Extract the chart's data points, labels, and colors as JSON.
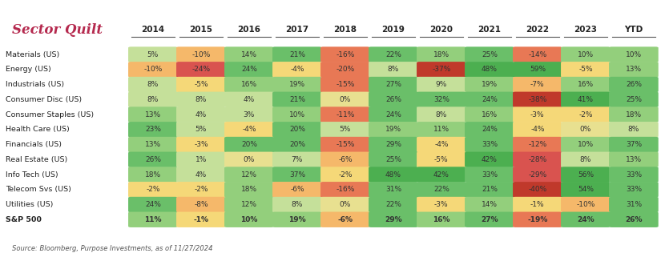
{
  "title": "Sector Quilt",
  "title_color": "#b5294e",
  "source": "Source: Bloomberg, Purpose Investments, as of 11/27/2024",
  "columns": [
    "2014",
    "2015",
    "2016",
    "2017",
    "2018",
    "2019",
    "2020",
    "2021",
    "2022",
    "2023",
    "YTD"
  ],
  "rows": [
    "Materials (US)",
    "Energy (US)",
    "Industrials (US)",
    "Consumer Disc (US)",
    "Consumer Staples (US)",
    "Health Care (US)",
    "Financials (US)",
    "Real Estate (US)",
    "Info Tech (US)",
    "Telecom Svs (US)",
    "Utilities (US)",
    "S&P 500"
  ],
  "values": [
    [
      5,
      -10,
      14,
      21,
      -16,
      22,
      18,
      25,
      -14,
      10,
      10
    ],
    [
      -10,
      -24,
      24,
      -4,
      -20,
      8,
      -37,
      48,
      59,
      -5,
      13
    ],
    [
      8,
      -5,
      16,
      19,
      -15,
      27,
      9,
      19,
      -7,
      16,
      26
    ],
    [
      8,
      8,
      4,
      21,
      0,
      26,
      32,
      24,
      -38,
      41,
      25
    ],
    [
      13,
      4,
      3,
      10,
      -11,
      24,
      8,
      16,
      -3,
      -2,
      18
    ],
    [
      23,
      5,
      -4,
      20,
      5,
      19,
      11,
      24,
      -4,
      0,
      8
    ],
    [
      13,
      -3,
      20,
      20,
      -15,
      29,
      -4,
      33,
      -12,
      10,
      37
    ],
    [
      26,
      1,
      0,
      7,
      -6,
      25,
      -5,
      42,
      -28,
      8,
      13
    ],
    [
      18,
      4,
      12,
      37,
      -2,
      48,
      42,
      33,
      -29,
      56,
      33
    ],
    [
      -2,
      -2,
      18,
      -6,
      -16,
      31,
      22,
      21,
      -40,
      54,
      33
    ],
    [
      24,
      -8,
      12,
      8,
      0,
      22,
      -3,
      14,
      -1,
      -10,
      31
    ],
    [
      11,
      -1,
      10,
      19,
      -6,
      29,
      16,
      27,
      -19,
      24,
      26
    ]
  ],
  "background_color": "#ffffff",
  "thresholds": [
    40,
    20,
    10,
    1,
    -1,
    -10,
    -20,
    -30
  ],
  "colors_pos": [
    "#4caf50",
    "#6abf69",
    "#93cf7c",
    "#c5e09a"
  ],
  "colors_neg": [
    "#f5d080",
    "#f5b060",
    "#e07050",
    "#d9534f",
    "#c0392b"
  ]
}
